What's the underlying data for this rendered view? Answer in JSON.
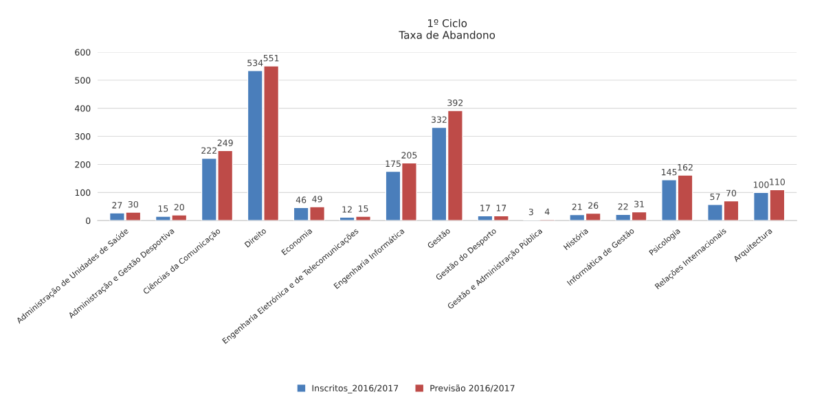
{
  "chart_data": {
    "type": "bar",
    "title": "1º Ciclo",
    "subtitle": "Taxa de Abandono",
    "categories": [
      "Administração de Unidades de Saúde",
      "Administração e Gestão Desportiva",
      "Ciências da Comunicação",
      "Direito",
      "Economia",
      "Engenharia Eletrónica e de Telecomunicações",
      "Engenharia Informática",
      "Gestão",
      "Gestão do Desporto",
      "Gestão e Administração Pública",
      "História",
      "Informática de Gestão",
      "Psicologia",
      "Relações Internacionais",
      "Arquitectura"
    ],
    "series": [
      {
        "name": "Inscritos_2016/2017",
        "color": "#4a7ebb",
        "values": [
          27,
          15,
          222,
          534,
          46,
          12,
          175,
          332,
          17,
          3,
          21,
          22,
          145,
          57,
          100
        ]
      },
      {
        "name": "Previsão 2016/2017",
        "color": "#be4b48",
        "values": [
          30,
          20,
          249,
          551,
          49,
          15,
          205,
          392,
          17,
          4,
          26,
          31,
          162,
          70,
          110
        ]
      }
    ],
    "ylim": [
      0,
      600
    ],
    "yticks": [
      0,
      100,
      200,
      300,
      400,
      500,
      600
    ],
    "grid": "y",
    "legend": "bottom",
    "data_labels": true
  }
}
